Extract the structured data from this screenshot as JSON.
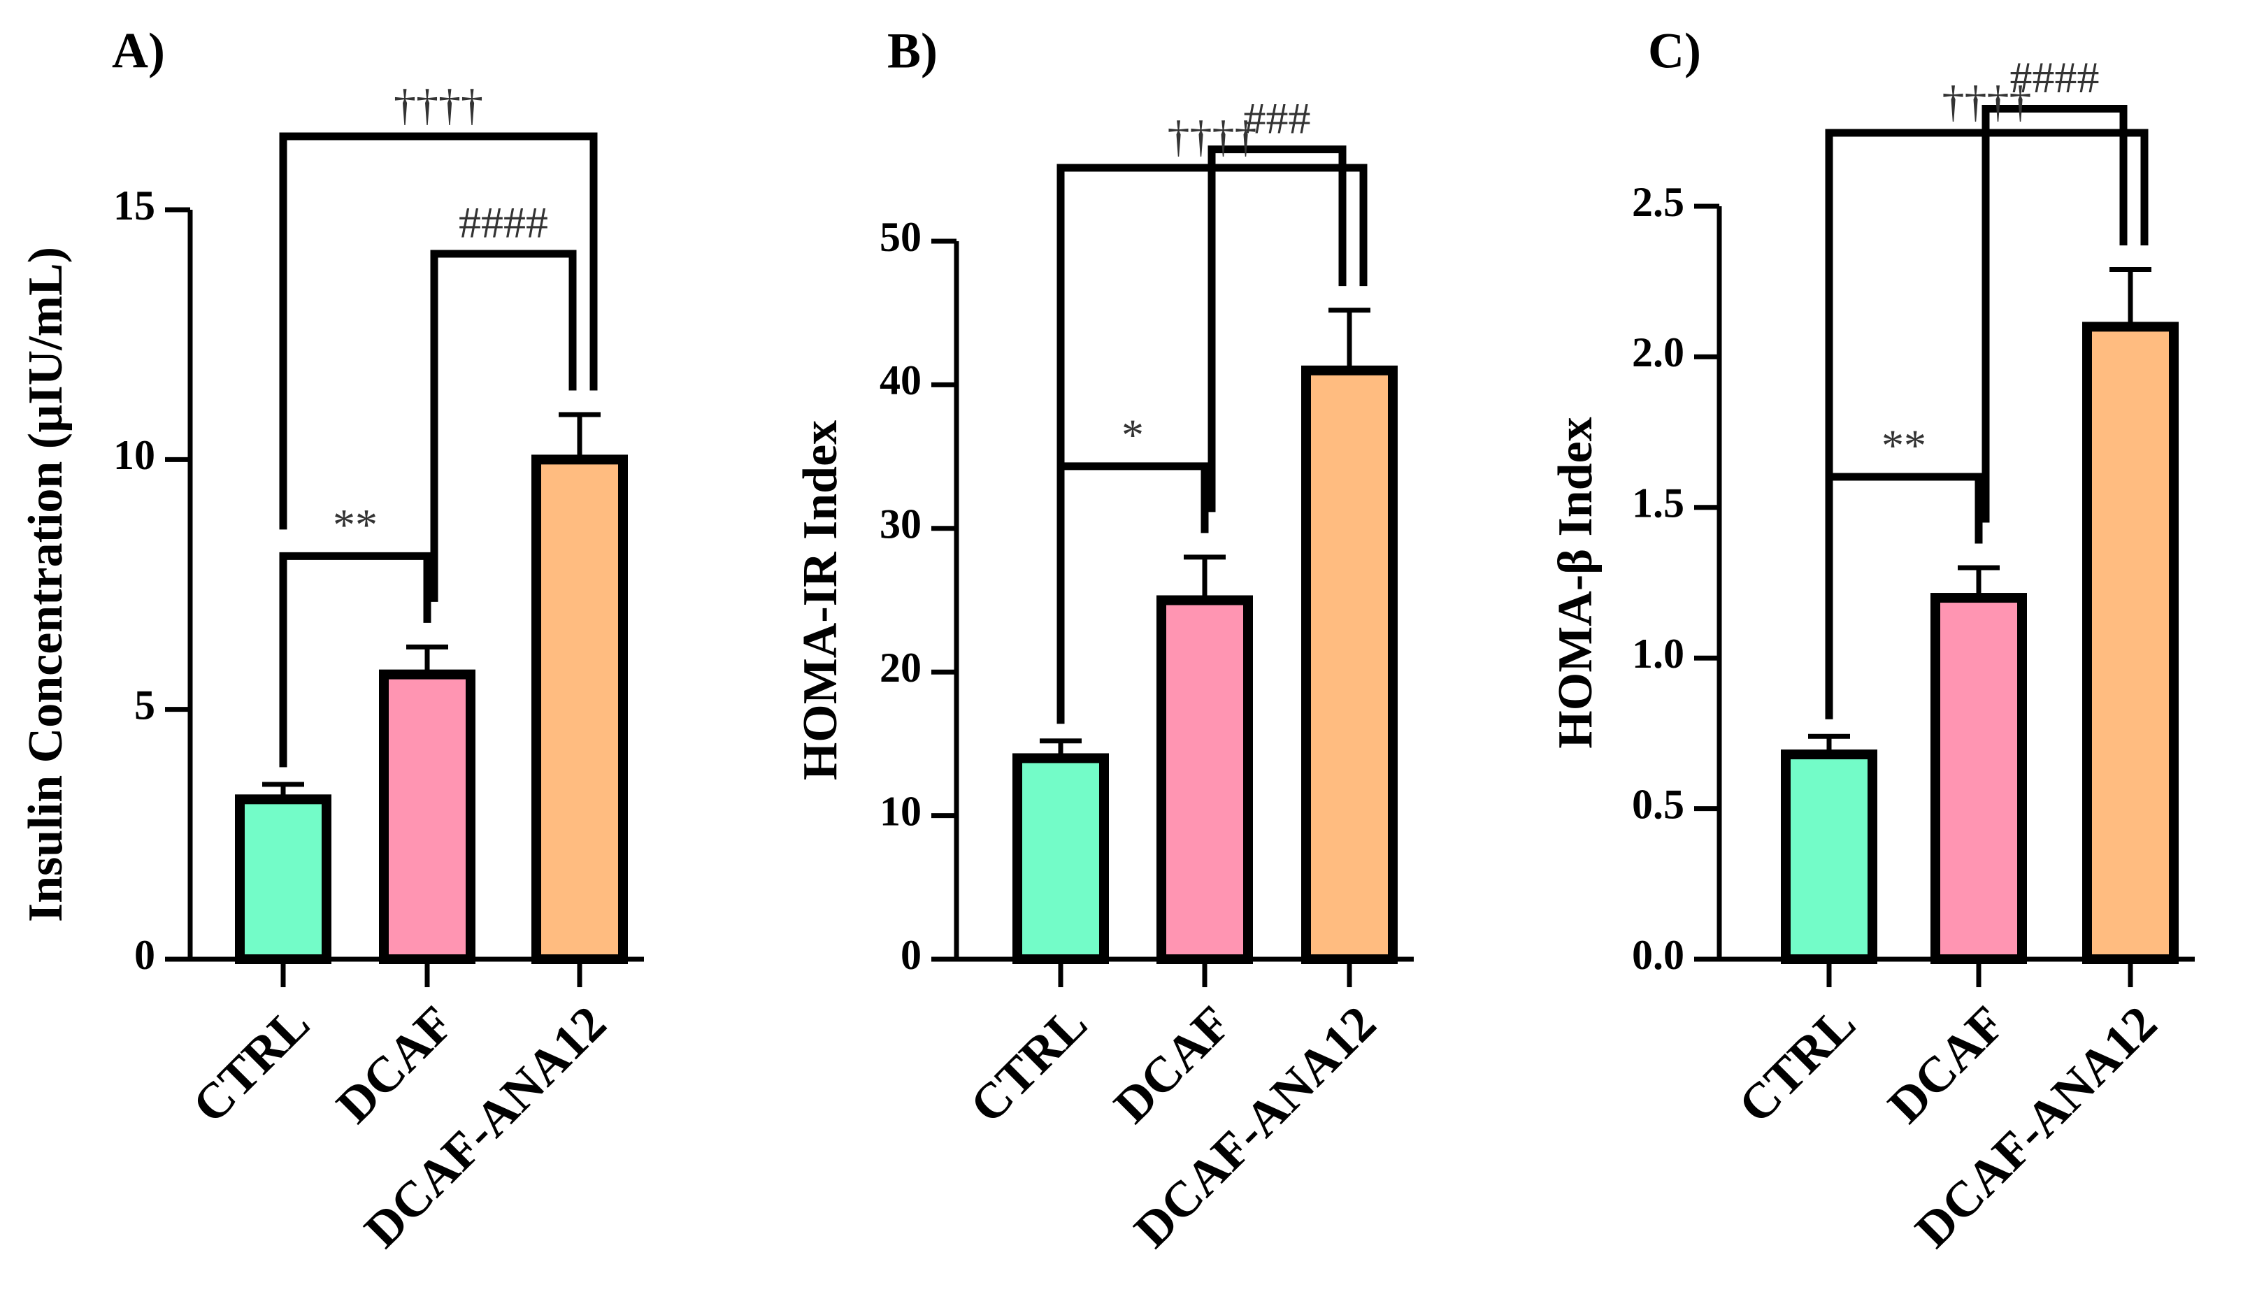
{
  "chart_data": [
    {
      "type": "bar",
      "panel_label": "A)",
      "categories": [
        "CTRL",
        "DCAF",
        "DCAF-ANA12"
      ],
      "values": [
        3.2,
        5.7,
        10.0
      ],
      "errors": [
        0.3,
        0.55,
        0.9
      ],
      "colors": [
        "#73fcc8",
        "#ff95b2",
        "#ffbc80"
      ],
      "ylabel": "Insulin Concentration (µIU/mL)",
      "ylim": [
        0,
        15
      ],
      "yticks": [
        0,
        5,
        10,
        15
      ],
      "yticklabels": [
        "0",
        "5",
        "10",
        "15"
      ],
      "annotations": [
        {
          "from": 0,
          "to": 1,
          "label": "**"
        },
        {
          "from": 1,
          "to": 2,
          "label": "####"
        },
        {
          "from": 0,
          "to": 2,
          "label": "††††"
        }
      ]
    },
    {
      "type": "bar",
      "panel_label": "B)",
      "categories": [
        "CTRL",
        "DCAF",
        "DCAF-ANA12"
      ],
      "values": [
        14.0,
        25.0,
        41.0
      ],
      "errors": [
        1.2,
        3.0,
        4.2
      ],
      "colors": [
        "#73fcc8",
        "#ff95b2",
        "#ffbc80"
      ],
      "ylabel": "HOMA-IR Index",
      "ylim": [
        0,
        50
      ],
      "yticks": [
        0,
        10,
        20,
        30,
        40,
        50
      ],
      "yticklabels": [
        "0",
        "10",
        "20",
        "30",
        "40",
        "50"
      ],
      "annotations": [
        {
          "from": 0,
          "to": 1,
          "label": "*"
        },
        {
          "from": 1,
          "to": 2,
          "label": "###"
        },
        {
          "from": 0,
          "to": 2,
          "label": "††††"
        }
      ]
    },
    {
      "type": "bar",
      "panel_label": "C)",
      "categories": [
        "CTRL",
        "DCAF",
        "DCAF-ANA12"
      ],
      "values": [
        0.68,
        1.2,
        2.1
      ],
      "errors": [
        0.06,
        0.1,
        0.19
      ],
      "colors": [
        "#73fcc8",
        "#ff95b2",
        "#ffbc80"
      ],
      "ylabel": "HOMA-β Index",
      "ylim": [
        0,
        2.5
      ],
      "yticks": [
        0,
        0.5,
        1.0,
        1.5,
        2.0,
        2.5
      ],
      "yticklabels": [
        "0.0",
        "0.5",
        "1.0",
        "1.5",
        "2.0",
        "2.5"
      ],
      "annotations": [
        {
          "from": 0,
          "to": 1,
          "label": "**"
        },
        {
          "from": 1,
          "to": 2,
          "label": "####"
        },
        {
          "from": 0,
          "to": 2,
          "label": "††††"
        }
      ]
    }
  ]
}
